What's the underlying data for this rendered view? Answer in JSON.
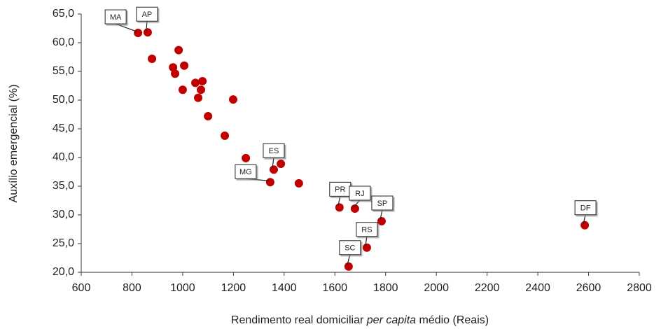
{
  "chart_data": {
    "type": "scatter",
    "xlabel": [
      "Rendimento real domiciliar",
      "per capita",
      "médio (Reais)"
    ],
    "ylabel": "Auxílio emergencial (%)",
    "xlim": [
      600,
      2800
    ],
    "xticks": [
      600,
      800,
      1000,
      1200,
      1400,
      1600,
      1800,
      2000,
      2200,
      2400,
      2600,
      2800
    ],
    "ylim": [
      20,
      65
    ],
    "yticks": [
      {
        "value": 20,
        "label": "20,0"
      },
      {
        "value": 25,
        "label": "25,0"
      },
      {
        "value": 30,
        "label": "30,0"
      },
      {
        "value": 35,
        "label": "35,0"
      },
      {
        "value": 40,
        "label": "40,0"
      },
      {
        "value": 45,
        "label": "45,0"
      },
      {
        "value": 50,
        "label": "50,0"
      },
      {
        "value": 55,
        "label": "55,0"
      },
      {
        "value": 60,
        "label": "60,0"
      },
      {
        "value": 65,
        "label": "65,0"
      }
    ],
    "grid": false,
    "series": [
      {
        "color": "#c00000",
        "x": [
          824,
          862,
          879,
          984,
          962,
          970,
          1006,
          1050,
          1078,
          1072,
          1000,
          1061,
          1199,
          1100,
          1166,
          1249,
          1359,
          1387,
          1345,
          1458,
          1618,
          1679,
          1784,
          2585,
          1726,
          1654
        ],
        "values": [
          61.7,
          61.8,
          57.2,
          58.7,
          55.7,
          54.6,
          56.0,
          53.0,
          53.3,
          51.8,
          51.8,
          50.4,
          50.1,
          47.2,
          43.8,
          39.9,
          37.9,
          38.9,
          35.7,
          35.5,
          31.3,
          31.1,
          28.9,
          28.2,
          24.3,
          21.0
        ],
        "point_labels": [
          "MA",
          "AP",
          null,
          null,
          null,
          null,
          null,
          null,
          null,
          null,
          null,
          null,
          null,
          null,
          null,
          null,
          "ES",
          null,
          "MG",
          null,
          "PR",
          "RJ",
          "SP",
          "DF",
          "RS",
          "SC"
        ]
      }
    ]
  }
}
